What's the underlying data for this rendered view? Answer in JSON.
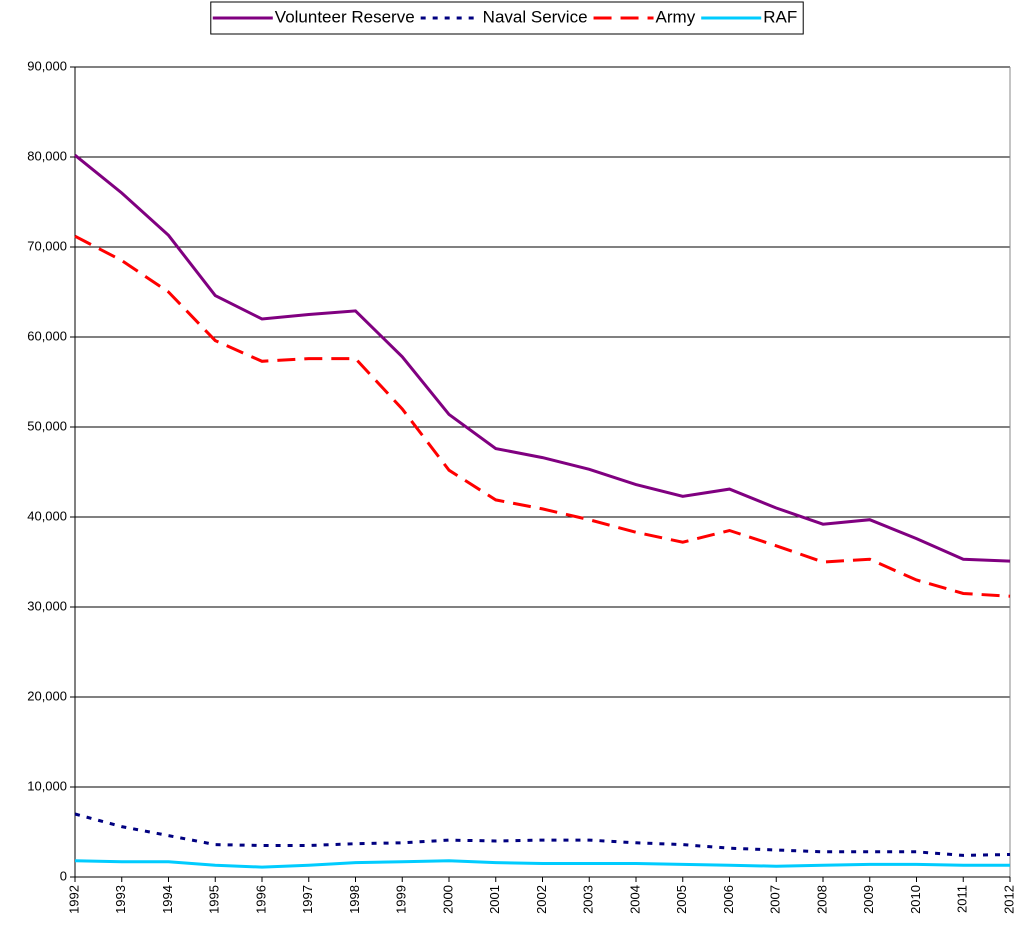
{
  "chart_data": {
    "type": "line",
    "categories": [
      "1992",
      "1993",
      "1994",
      "1995",
      "1996",
      "1997",
      "1998",
      "1999",
      "2000",
      "2001",
      "2002",
      "2003",
      "2004",
      "2005",
      "2006",
      "2007",
      "2008",
      "2009",
      "2010",
      "2011",
      "2012"
    ],
    "series": [
      {
        "name": "Volunteer Reserve",
        "color": "#800080",
        "dash": "solid",
        "values": [
          80200,
          76000,
          71300,
          64600,
          62000,
          62500,
          62900,
          57800,
          51400,
          47600,
          46600,
          45300,
          43600,
          42300,
          43100,
          41000,
          39200,
          39700,
          37600,
          35300,
          35100
        ]
      },
      {
        "name": "Naval Service",
        "color": "#000080",
        "dash": "dotted",
        "values": [
          7000,
          5600,
          4600,
          3600,
          3500,
          3500,
          3700,
          3800,
          4100,
          4000,
          4100,
          4100,
          3800,
          3600,
          3200,
          3000,
          2800,
          2800,
          2800,
          2400,
          2500
        ]
      },
      {
        "name": "Army",
        "color": "#ff0000",
        "dash": "dashed",
        "values": [
          71200,
          68500,
          65000,
          59600,
          57300,
          57600,
          57600,
          52000,
          45200,
          41900,
          40900,
          39700,
          38300,
          37200,
          38500,
          36800,
          35000,
          35300,
          33000,
          31500,
          31200
        ]
      },
      {
        "name": "RAF",
        "color": "#00ccff",
        "dash": "solid",
        "values": [
          1800,
          1700,
          1700,
          1300,
          1100,
          1300,
          1600,
          1700,
          1800,
          1600,
          1500,
          1500,
          1500,
          1400,
          1300,
          1200,
          1300,
          1400,
          1400,
          1300,
          1300
        ]
      }
    ],
    "ylim": [
      0,
      90000
    ],
    "yticks": [
      0,
      {
        "value": 10000,
        "label": "10,000"
      },
      {
        "value": 20000,
        "label": "20,000"
      },
      {
        "value": 30000,
        "label": "30,000"
      },
      {
        "value": 40000,
        "label": "40,000"
      },
      {
        "value": 50000,
        "label": "50,000"
      },
      {
        "value": 60000,
        "label": "60,000"
      },
      {
        "value": 70000,
        "label": "70,000"
      },
      {
        "value": 80000,
        "label": "80,000"
      },
      {
        "value": 90000,
        "label": "90,000"
      }
    ],
    "grid": true,
    "legend": "top"
  }
}
